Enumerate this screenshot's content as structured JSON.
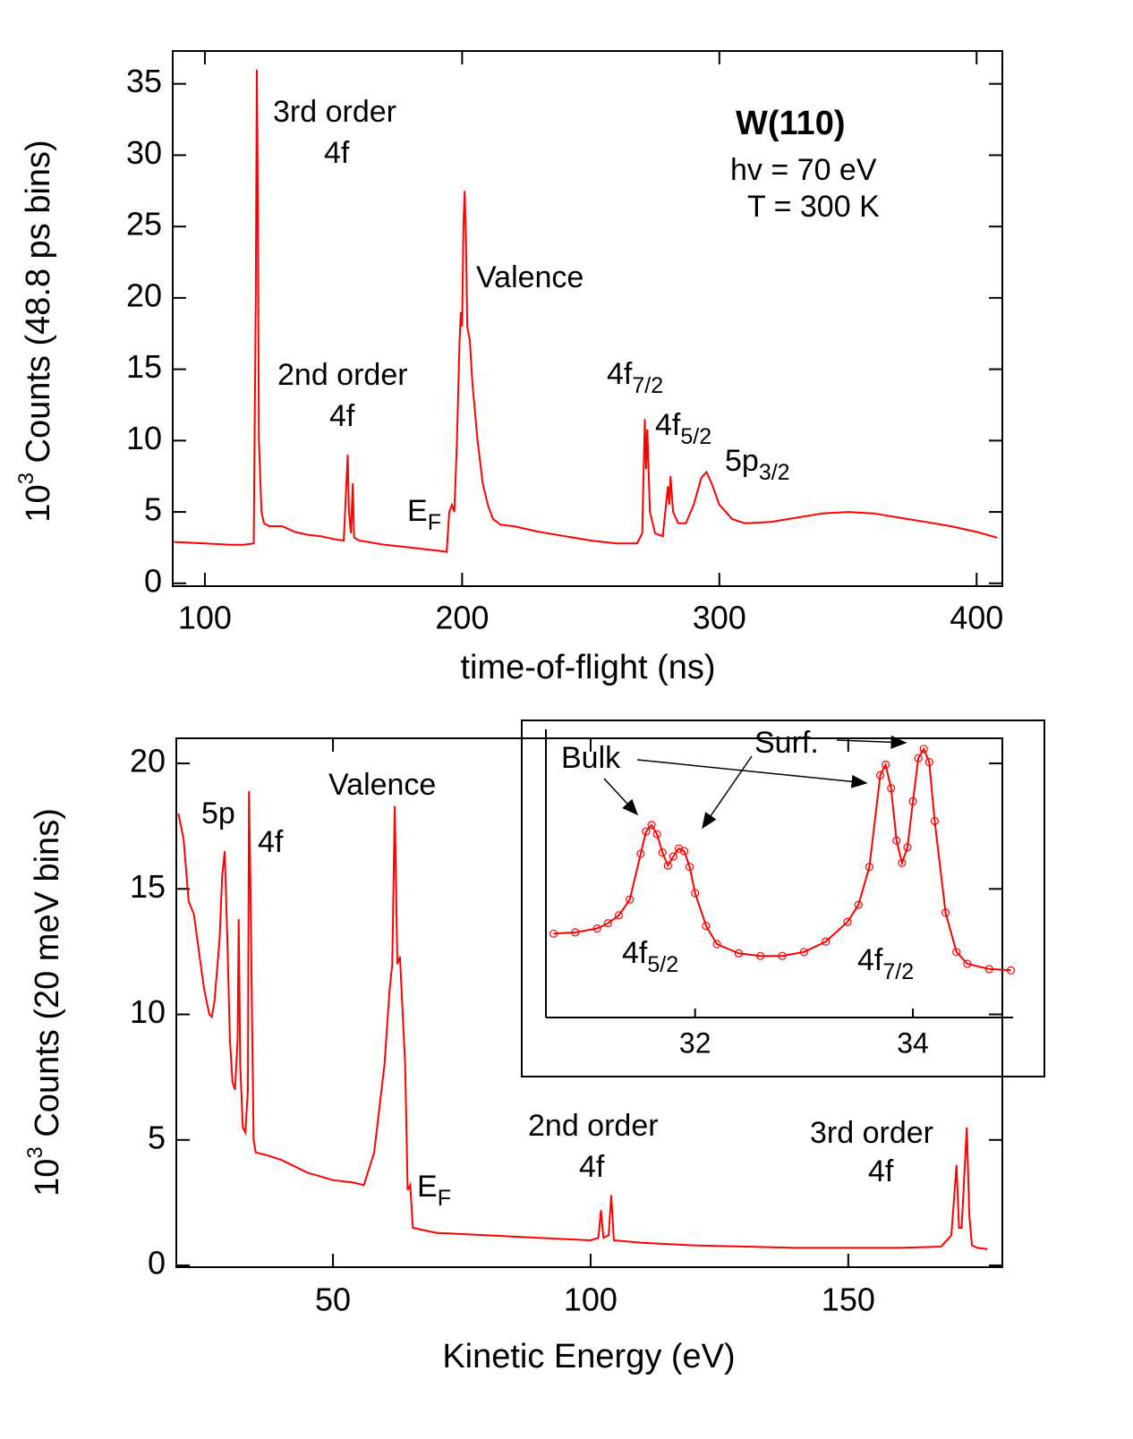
{
  "chart_data": [
    {
      "type": "line",
      "color": "#ff0000",
      "x_label": "time-of-flight (ns)",
      "y_label": {
        "base": "10",
        "sup": "3",
        "rest": " Counts (48.8 ps bins)"
      },
      "xlim": [
        87.5,
        410
      ],
      "ylim": [
        -0.2,
        37.3
      ],
      "xticks": [
        100,
        200,
        300,
        400
      ],
      "yticks": [
        0,
        5,
        10,
        15,
        20,
        25,
        30,
        35
      ],
      "annotations": [
        {
          "text": "3rd order"
        },
        {
          "text": "4f"
        },
        {
          "text": "2nd order"
        },
        {
          "text": "4f"
        },
        {
          "text": "E",
          "sub": "F"
        },
        {
          "text": "Valence"
        },
        {
          "text": "4f",
          "sub": "7/2"
        },
        {
          "text": "4f",
          "sub": "5/2"
        },
        {
          "text": "5p",
          "sub": "3/2"
        },
        {
          "text": "W(110)"
        },
        {
          "text": "hv = 70 eV"
        },
        {
          "text": "T = 300 K"
        }
      ],
      "x": [
        88,
        100,
        110,
        115,
        119,
        119.8,
        120.2,
        120.6,
        121,
        122,
        123,
        125,
        130,
        135,
        140,
        145,
        150,
        154,
        155.5,
        156,
        156.8,
        157.5,
        158,
        160,
        170,
        180,
        190,
        194,
        195,
        196,
        197,
        198,
        199,
        199.5,
        200,
        200.5,
        201,
        201.5,
        202,
        203,
        204,
        206,
        208,
        210,
        212,
        215,
        220,
        230,
        240,
        250,
        260,
        268,
        270,
        271,
        271.5,
        272,
        273,
        275,
        278,
        280,
        280.5,
        281,
        282,
        284,
        287,
        290,
        293,
        295,
        297,
        300,
        305,
        310,
        320,
        330,
        340,
        350,
        360,
        370,
        380,
        390,
        400,
        408
      ],
      "values": [
        2.9,
        2.8,
        2.7,
        2.7,
        2.8,
        20,
        36,
        27,
        10,
        5,
        4.2,
        4.0,
        4.0,
        3.6,
        3.4,
        3.3,
        3.1,
        3.0,
        9,
        5,
        3.5,
        7,
        3.2,
        3.0,
        2.7,
        2.5,
        2.3,
        2.2,
        5,
        5.5,
        5,
        10,
        17,
        19,
        18,
        25,
        27.5,
        24,
        18,
        17,
        14,
        10,
        7,
        5.5,
        4.5,
        4.1,
        4.0,
        3.6,
        3.3,
        3.0,
        2.8,
        2.8,
        3.5,
        11.5,
        8,
        10.8,
        5,
        3.5,
        3.3,
        6.8,
        5.5,
        7.5,
        5,
        4.2,
        4.2,
        5.5,
        7.4,
        7.8,
        7,
        5.5,
        4.5,
        4.2,
        4.3,
        4.6,
        4.9,
        5.0,
        4.9,
        4.6,
        4.3,
        4.0,
        3.6,
        3.2
      ]
    },
    {
      "type": "line",
      "color": "#ff0000",
      "x_label": "Kinetic Energy (eV)",
      "y_label": {
        "base": "10",
        "sup": "3",
        "rest": " Counts (20 meV bins)"
      },
      "xlim": [
        19.6,
        179.9
      ],
      "ylim": [
        -0.07,
        21
      ],
      "xticks": [
        50,
        100,
        150
      ],
      "yticks": [
        0,
        5,
        10,
        15,
        20
      ],
      "annotations": [
        {
          "text": "5p"
        },
        {
          "text": "4f"
        },
        {
          "text": "Valence"
        },
        {
          "text": "E",
          "sub": "F"
        },
        {
          "text": "2nd order"
        },
        {
          "text": "4f"
        },
        {
          "text": "3rd order"
        },
        {
          "text": "4f"
        }
      ],
      "x": [
        20,
        21,
        22,
        23,
        24,
        25,
        26,
        26.5,
        27,
        28,
        28.5,
        29,
        29.5,
        30,
        30.5,
        31,
        31.5,
        31.7,
        32,
        32.5,
        33,
        33.5,
        33.7,
        34,
        34.3,
        34.6,
        35,
        37,
        40,
        45,
        50,
        54,
        56,
        58,
        60,
        61,
        61.5,
        62,
        62.5,
        63,
        64,
        64.5,
        65,
        65.5,
        70,
        80,
        90,
        100,
        101.5,
        102,
        102.5,
        103.5,
        104,
        104.5,
        110,
        120,
        130,
        140,
        150,
        160,
        168,
        170,
        171,
        171.5,
        172,
        173,
        173.5,
        174,
        175,
        177
      ],
      "values": [
        18,
        17,
        14.5,
        14,
        12.5,
        11,
        10,
        9.9,
        10.5,
        13,
        15.5,
        16.5,
        13,
        9,
        7.3,
        7,
        9,
        13.8,
        8,
        5.5,
        5.3,
        7,
        18.9,
        15,
        10,
        5,
        4.5,
        4.4,
        4.2,
        3.7,
        3.4,
        3.3,
        3.2,
        4.5,
        8,
        11,
        12,
        18.3,
        12,
        12.3,
        8,
        3,
        3.2,
        1.5,
        1.3,
        1.2,
        1.1,
        1.0,
        1.1,
        2.2,
        1.1,
        1.2,
        2.8,
        1.0,
        0.9,
        0.8,
        0.75,
        0.7,
        0.7,
        0.7,
        0.75,
        1.2,
        4.0,
        1.5,
        1.5,
        5.5,
        2,
        0.8,
        0.7,
        0.65
      ]
    },
    {
      "type": "line",
      "color": "#ff0000",
      "markers": true,
      "xlim": [
        30.63,
        34.92
      ],
      "ylim": [
        0,
        22
      ],
      "xticks": [
        32,
        34
      ],
      "annotations": [
        {
          "text": "Bulk"
        },
        {
          "text": "Surf."
        },
        {
          "text": "4f",
          "sub": "5/2"
        },
        {
          "text": "4f",
          "sub": "7/2"
        }
      ],
      "x": [
        30.7,
        30.9,
        31.1,
        31.2,
        31.3,
        31.4,
        31.5,
        31.55,
        31.6,
        31.65,
        31.7,
        31.75,
        31.8,
        31.85,
        31.9,
        31.95,
        32.0,
        32.1,
        32.2,
        32.4,
        32.6,
        32.8,
        33.0,
        33.2,
        33.4,
        33.5,
        33.6,
        33.7,
        33.75,
        33.8,
        33.85,
        33.9,
        33.95,
        34.0,
        34.05,
        34.1,
        34.15,
        34.2,
        34.3,
        34.4,
        34.5,
        34.7,
        34.9
      ],
      "values": [
        6.4,
        6.5,
        6.8,
        7.2,
        7.8,
        9,
        12.5,
        14.2,
        14.7,
        14,
        12.6,
        11.6,
        12.3,
        12.9,
        12.7,
        11.5,
        9.5,
        7,
        5.6,
        4.9,
        4.7,
        4.7,
        5.0,
        5.8,
        7.3,
        8.6,
        11.5,
        18.5,
        19.3,
        17.5,
        13.5,
        11.8,
        13,
        16.5,
        19.8,
        20.5,
        19.5,
        15,
        8,
        5,
        4.1,
        3.7,
        3.6
      ]
    }
  ]
}
